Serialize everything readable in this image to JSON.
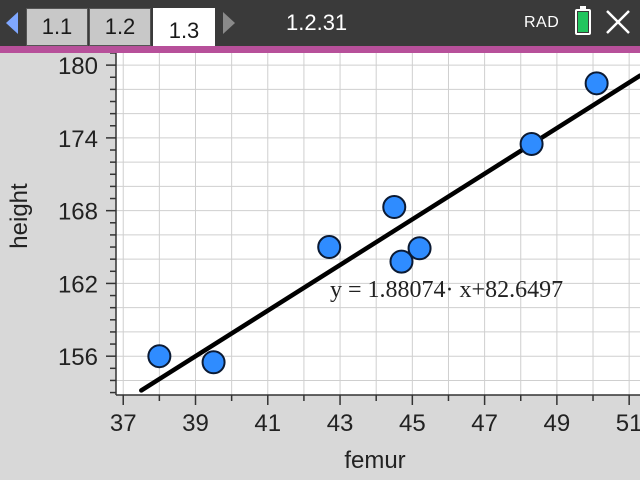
{
  "tabs": [
    {
      "label": "1.1",
      "active": false
    },
    {
      "label": "1.2",
      "active": false
    },
    {
      "label": "1.3",
      "active": true
    }
  ],
  "page_label": "1.2.31",
  "angle_mode": "RAD",
  "colors": {
    "topbar": "#3a3a3a",
    "accent": "#b7509a",
    "point_fill": "#2f8cff",
    "regression_line": "#000000",
    "battery": "#22c55e"
  },
  "icons": {
    "prev": "triangle-left-icon",
    "next": "triangle-right-icon",
    "battery": "battery-icon",
    "close": "close-x-icon"
  },
  "chart_data": {
    "type": "scatter",
    "xlabel": "femur",
    "ylabel": "height",
    "xlim": [
      36.8,
      51.3
    ],
    "ylim": [
      152.8,
      181
    ],
    "xticks": [
      37,
      39,
      41,
      43,
      45,
      47,
      49,
      51
    ],
    "yticks": [
      156,
      162,
      168,
      174,
      180
    ],
    "series": [
      {
        "points": [
          {
            "x": 38.0,
            "y": 156.0
          },
          {
            "x": 39.5,
            "y": 155.5
          },
          {
            "x": 42.7,
            "y": 165.0
          },
          {
            "x": 44.5,
            "y": 168.3
          },
          {
            "x": 44.7,
            "y": 163.8
          },
          {
            "x": 45.2,
            "y": 164.9
          },
          {
            "x": 48.3,
            "y": 173.5
          },
          {
            "x": 50.1,
            "y": 178.5
          }
        ]
      }
    ],
    "regression": {
      "slope": 1.88074,
      "intercept": 82.6497
    },
    "equation": "y = 1.88074· x+82.6497"
  }
}
